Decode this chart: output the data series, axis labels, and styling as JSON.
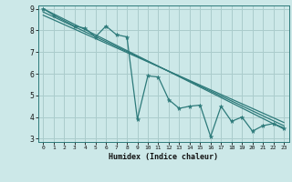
{
  "title": "",
  "xlabel": "Humidex (Indice chaleur)",
  "bg_color": "#cce8e8",
  "grid_color": "#aacccc",
  "line_color": "#2d7a7a",
  "xlim": [
    -0.5,
    23.5
  ],
  "ylim": [
    2.85,
    9.15
  ],
  "yticks": [
    3,
    4,
    5,
    6,
    7,
    8,
    9
  ],
  "xticks": [
    0,
    1,
    2,
    3,
    4,
    5,
    6,
    7,
    8,
    9,
    10,
    11,
    12,
    13,
    14,
    15,
    16,
    17,
    18,
    19,
    20,
    21,
    22,
    23
  ],
  "line1_x": [
    0,
    1,
    3,
    4,
    5,
    6,
    7,
    8,
    9,
    10,
    11,
    12,
    13,
    14,
    15,
    16,
    17,
    18,
    19,
    20,
    21,
    22,
    23
  ],
  "line1_y": [
    9.0,
    8.7,
    8.2,
    8.1,
    7.7,
    8.2,
    7.8,
    7.7,
    3.9,
    5.9,
    5.85,
    4.8,
    4.4,
    4.5,
    4.55,
    3.1,
    4.5,
    3.8,
    4.0,
    3.35,
    3.6,
    3.7,
    3.5
  ],
  "line2_x": [
    0,
    23
  ],
  "line2_y": [
    9.0,
    3.45
  ],
  "line3_x": [
    0,
    23
  ],
  "line3_y": [
    8.85,
    3.6
  ],
  "line4_x": [
    0,
    23
  ],
  "line4_y": [
    8.7,
    3.75
  ]
}
